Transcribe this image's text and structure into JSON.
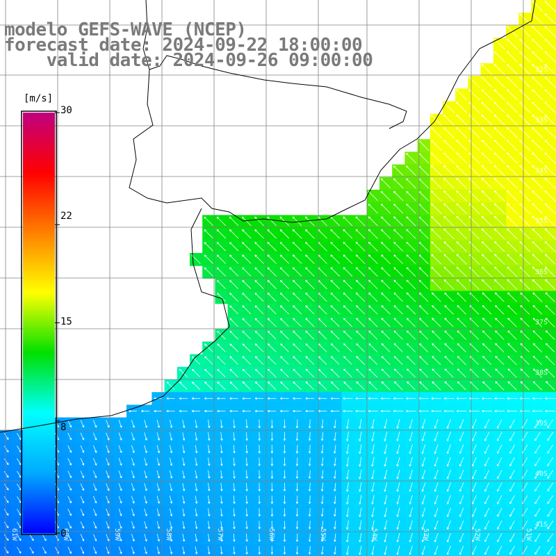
{
  "title": {
    "line1": "modelo GEFS-WAVE (NCEP)",
    "line2": "forecast date: 2024-09-22 18:00:00",
    "line3": "    valid date: 2024-09-26 09:00:00"
  },
  "colorbar": {
    "unit": "[m/s]",
    "ticks": [
      "30",
      "22",
      "15",
      "8",
      "0"
    ],
    "tick_values": [
      30,
      22,
      15,
      8,
      0
    ],
    "range": [
      0,
      30
    ],
    "colors": [
      "#0000ff",
      "#00aaff",
      "#00ffff",
      "#00e000",
      "#ffff00",
      "#ff8000",
      "#ff0000",
      "#c00080"
    ]
  },
  "grid": {
    "lat_labels": [
      "32S",
      "33S",
      "34S",
      "35S",
      "36S",
      "37S",
      "38S",
      "39S",
      "40S",
      "41S"
    ],
    "lon_labels": [
      "61W",
      "60W",
      "59W",
      "58W",
      "57W",
      "56W",
      "55W",
      "54W",
      "53W",
      "52W",
      "51W"
    ]
  },
  "colors": {
    "land": "#ffffff",
    "coast": "#000000",
    "grid_line": "#7f7f7f",
    "arrow": "#ffffff"
  }
}
